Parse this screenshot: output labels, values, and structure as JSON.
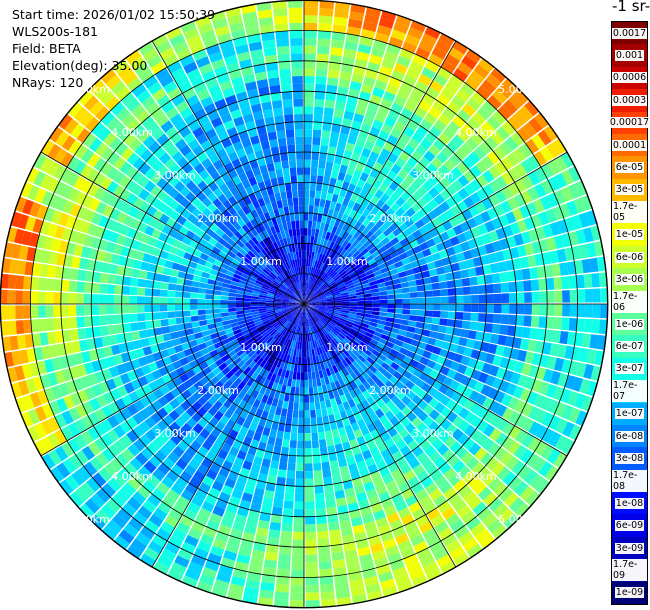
{
  "header": {
    "start_time": "Start time: 2026/01/02 15:50:39",
    "instrument": "WLS200s-181",
    "field": "Field: BETA",
    "elevation": "Elevation(deg): 35.00",
    "nrays": "NRays: 120"
  },
  "colorbar": {
    "unit_label": "-1 sr-",
    "tick_labels": [
      "0.0017",
      "0.001",
      "0.0006",
      "0.0003",
      "0.00017",
      "0.0001",
      "6e-05",
      "3e-05",
      "1.7e-05",
      "1e-05",
      "6e-06",
      "3e-06",
      "1.7e-06",
      "1e-06",
      "6e-07",
      "3e-07",
      "1.7e-07",
      "1e-07",
      "6e-08",
      "3e-08",
      "1.7e-08",
      "1e-08",
      "6e-09",
      "3e-09",
      "1.7e-09",
      "1e-09"
    ],
    "colors": [
      "#7f0000",
      "#a40000",
      "#cc0000",
      "#ee1c00",
      "#ff4000",
      "#ff6a00",
      "#ff9400",
      "#ffba00",
      "#ffe100",
      "#f2ff05",
      "#ccff2b",
      "#a7ff50",
      "#81ff76",
      "#5cff9b",
      "#36ffc1",
      "#11ffe6",
      "#00d4ff",
      "#00acff",
      "#0084ff",
      "#005cff",
      "#0034ff",
      "#000cff",
      "#0000e6",
      "#0000c1",
      "#00009b",
      "#000076"
    ]
  },
  "chart_data": {
    "type": "ppi",
    "field": "BETA",
    "nrays": 120,
    "elevation_deg": 35.0,
    "range_ring_labels": [
      "1.00km",
      "2.00km",
      "3.00km",
      "4.00km",
      "5.00km"
    ],
    "range_rings_km": [
      1,
      2,
      3,
      4,
      5
    ],
    "max_range_km": 5.0,
    "color_scale": "log",
    "vmin": 1e-09,
    "vmax": 0.0017
  }
}
